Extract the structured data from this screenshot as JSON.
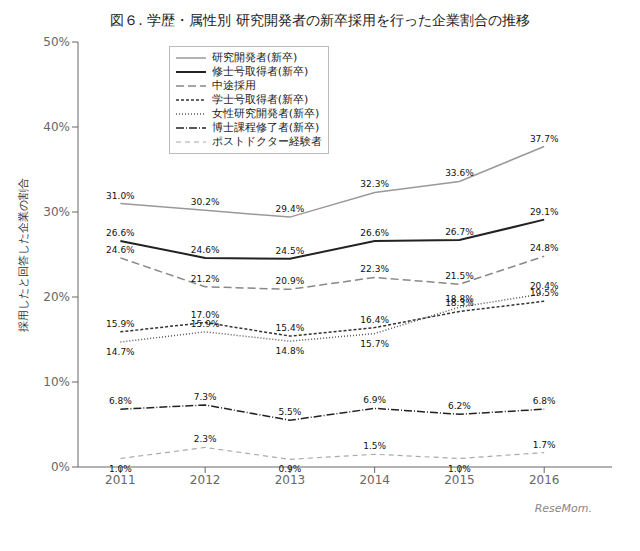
{
  "chart_data": {
    "type": "line",
    "title": "図６. 学歴・属性別 研究開発者の新卒採用を行った企業割合の推移",
    "ylabel": "採用したと回答した企業の割合",
    "x": [
      2011,
      2012,
      2013,
      2014,
      2015,
      2016
    ],
    "xlim": [
      2010.5,
      2016.8
    ],
    "xticks": [
      2011,
      2012,
      2013,
      2014,
      2015,
      2016
    ],
    "ylim": [
      0,
      50
    ],
    "yticks": [
      {
        "value": 0,
        "label": "0%"
      },
      {
        "value": 10,
        "label": "10%"
      },
      {
        "value": 20,
        "label": "20%"
      },
      {
        "value": 30,
        "label": "30%"
      },
      {
        "value": 40,
        "label": "40%"
      },
      {
        "value": 50,
        "label": "50%"
      }
    ],
    "grid": false,
    "legend": "upper-left",
    "data_labels": true,
    "annotation": "ReseMom.",
    "series": [
      {
        "name": "研究開発者(新卒)",
        "color": "#999999",
        "line_style": "solid",
        "values": [
          31.0,
          30.2,
          29.4,
          32.3,
          33.6,
          37.7
        ],
        "value_labels": [
          "31.0%",
          "30.2%",
          "29.4%",
          "32.3%",
          "33.6%",
          "37.7%"
        ]
      },
      {
        "name": "修士号取得者(新卒)",
        "color": "#222222",
        "line_style": "solid",
        "values": [
          26.6,
          24.6,
          24.5,
          26.6,
          26.7,
          29.1
        ],
        "value_labels": [
          "26.6%",
          "24.6%",
          "24.5%",
          "26.6%",
          "26.7%",
          "29.1%"
        ]
      },
      {
        "name": "中途採用",
        "color": "#888888",
        "line_style": "dashed",
        "values": [
          24.6,
          21.2,
          20.9,
          22.3,
          21.5,
          24.8
        ],
        "value_labels": [
          "24.6%",
          "21.2%",
          "20.9%",
          "22.3%",
          "21.5%",
          "24.8%"
        ]
      },
      {
        "name": "学士号取得者(新卒)",
        "color": "#333333",
        "line_style": "short-dashed",
        "values": [
          15.9,
          17.0,
          15.4,
          16.4,
          18.3,
          19.5
        ],
        "value_labels": [
          "15.9%",
          "17.0%",
          "15.4%",
          "16.4%",
          "18.3%",
          "19.5%"
        ]
      },
      {
        "name": "女性研究開発者(新卒)",
        "color": "#555555",
        "line_style": "dotted",
        "values": [
          14.7,
          15.9,
          14.8,
          15.7,
          18.8,
          20.4
        ],
        "value_labels": [
          "14.7%",
          "15.9%",
          "14.8%",
          "15.7%",
          "18.8%",
          "20.4%"
        ]
      },
      {
        "name": "博士課程修了者(新卒)",
        "color": "#222222",
        "line_style": "dash-dot",
        "values": [
          6.8,
          7.3,
          5.5,
          6.9,
          6.2,
          6.8
        ],
        "value_labels": [
          "6.8%",
          "7.3%",
          "5.5%",
          "6.9%",
          "6.2%",
          "6.8%"
        ]
      },
      {
        "name": "ポストドクター経験者",
        "color": "#aaaaaa",
        "line_style": "long-dashed",
        "values": [
          1.0,
          2.3,
          0.9,
          1.5,
          1.0,
          1.7
        ],
        "value_labels": [
          "1.0%",
          "2.3%",
          "0.9%",
          "1.5%",
          "1.0%",
          "1.7%"
        ]
      }
    ]
  }
}
